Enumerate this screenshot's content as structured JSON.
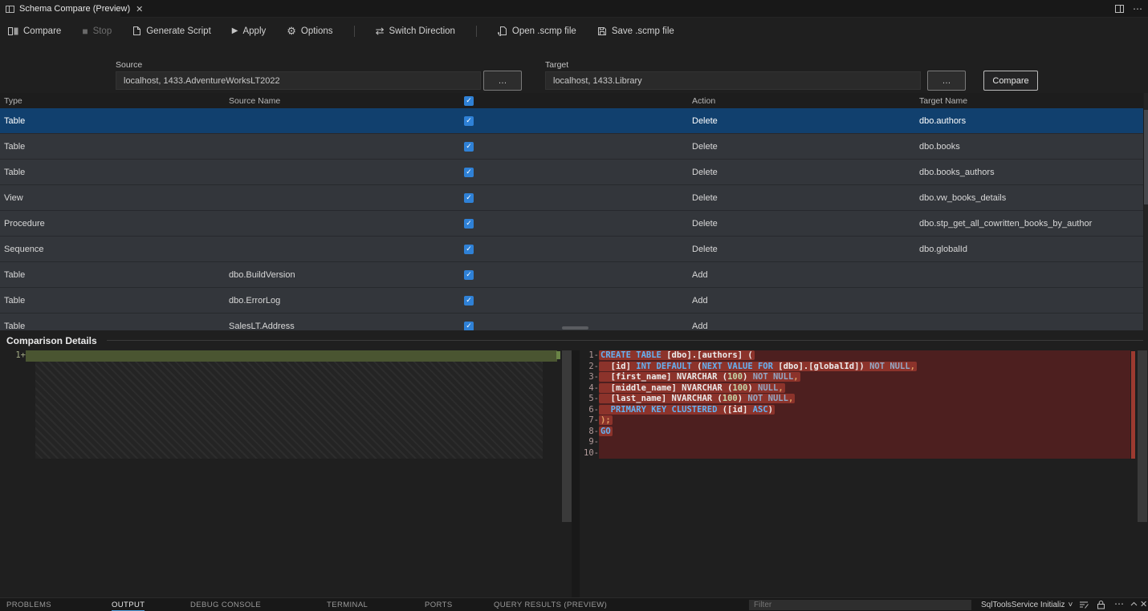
{
  "icons": {
    "check": "✓",
    "close": "✕",
    "more": "⋯",
    "chevron_down": "˅",
    "gear": "⚙",
    "swap": "⇄",
    "play": "▶",
    "stop": "■"
  },
  "tab_bar": {
    "title": "Schema Compare (Preview)"
  },
  "toolbar": {
    "items": [
      {
        "label": "Compare"
      },
      {
        "label": "Stop",
        "disabled": true
      },
      {
        "label": "Generate Script"
      },
      {
        "label": "Apply"
      },
      {
        "label": "Options"
      },
      {
        "label": "Switch Direction"
      },
      {
        "label": "Open .scmp file"
      },
      {
        "label": "Save .scmp file"
      }
    ]
  },
  "connection": {
    "source": {
      "label": "Source",
      "value": "localhost, 1433.AdventureWorksLT2022"
    },
    "target": {
      "label": "Target",
      "value": "localhost, 1433.Library"
    },
    "browse_label": "…",
    "compare_label": "Compare"
  },
  "grid": {
    "columns": [
      "Type",
      "Source Name",
      "Action",
      "Target Name"
    ],
    "rows": [
      {
        "type": "Table",
        "source": "",
        "checked": true,
        "action": "Delete",
        "target": "dbo.authors",
        "selected": true
      },
      {
        "type": "Table",
        "source": "",
        "checked": true,
        "action": "Delete",
        "target": "dbo.books"
      },
      {
        "type": "Table",
        "source": "",
        "checked": true,
        "action": "Delete",
        "target": "dbo.books_authors"
      },
      {
        "type": "View",
        "source": "",
        "checked": true,
        "action": "Delete",
        "target": "dbo.vw_books_details"
      },
      {
        "type": "Procedure",
        "source": "",
        "checked": true,
        "action": "Delete",
        "target": "dbo.stp_get_all_cowritten_books_by_author"
      },
      {
        "type": "Sequence",
        "source": "",
        "checked": true,
        "action": "Delete",
        "target": "dbo.globalId"
      },
      {
        "type": "Table",
        "source": "dbo.BuildVersion",
        "checked": true,
        "action": "Add",
        "target": ""
      },
      {
        "type": "Table",
        "source": "dbo.ErrorLog",
        "checked": true,
        "action": "Add",
        "target": ""
      },
      {
        "type": "Table",
        "source": "SalesLT.Address",
        "checked": true,
        "action": "Add",
        "target": ""
      }
    ]
  },
  "comparison": {
    "title": "Comparison Details",
    "left": {
      "lines": [
        {
          "num": "1",
          "sign": "+",
          "tokens": []
        }
      ]
    },
    "right": {
      "lines": [
        {
          "num": "1",
          "sign": "-",
          "tokens": [
            [
              "kw",
              "CREATE TABLE "
            ],
            [
              "id",
              "[dbo].[authors] ("
            ]
          ]
        },
        {
          "num": "2",
          "sign": "-",
          "tokens": [
            [
              "id",
              "  [id] "
            ],
            [
              "kw",
              "INT DEFAULT "
            ],
            [
              "id",
              "("
            ],
            [
              "kw",
              "NEXT VALUE FOR "
            ],
            [
              "id",
              "[dbo].[globalId]) "
            ],
            [
              "dim",
              "NOT NULL"
            ],
            [
              "punct",
              ","
            ]
          ]
        },
        {
          "num": "3",
          "sign": "-",
          "tokens": [
            [
              "id",
              "  [first_name] "
            ],
            [
              "type",
              "NVARCHAR "
            ],
            [
              "id",
              "("
            ],
            [
              "num",
              "100"
            ],
            [
              "id",
              ") "
            ],
            [
              "dim",
              "NOT NULL"
            ],
            [
              "punct",
              ","
            ]
          ]
        },
        {
          "num": "4",
          "sign": "-",
          "tokens": [
            [
              "id",
              "  [middle_name] "
            ],
            [
              "type",
              "NVARCHAR "
            ],
            [
              "id",
              "("
            ],
            [
              "num",
              "100"
            ],
            [
              "id",
              ") "
            ],
            [
              "dim",
              "NULL"
            ],
            [
              "punct",
              ","
            ]
          ]
        },
        {
          "num": "5",
          "sign": "-",
          "tokens": [
            [
              "id",
              "  [last_name] "
            ],
            [
              "type",
              "NVARCHAR "
            ],
            [
              "id",
              "("
            ],
            [
              "num",
              "100"
            ],
            [
              "id",
              ") "
            ],
            [
              "dim",
              "NOT NULL"
            ],
            [
              "punct",
              ","
            ]
          ]
        },
        {
          "num": "6",
          "sign": "-",
          "tokens": [
            [
              "kw",
              "  PRIMARY KEY CLUSTERED "
            ],
            [
              "id",
              "([id] "
            ],
            [
              "kw",
              "ASC"
            ],
            [
              "id",
              ")"
            ]
          ]
        },
        {
          "num": "7",
          "sign": "-",
          "tokens": [
            [
              "punct",
              ");"
            ]
          ]
        },
        {
          "num": "8",
          "sign": "-",
          "tokens": [
            [
              "kw",
              "GO"
            ]
          ]
        },
        {
          "num": "9",
          "sign": "-",
          "tokens": []
        },
        {
          "num": "10",
          "sign": "-",
          "tokens": []
        }
      ]
    }
  },
  "bottom": {
    "tabs": [
      "PROBLEMS",
      "OUTPUT",
      "DEBUG CONSOLE",
      "TERMINAL",
      "PORTS",
      "QUERY RESULTS (PREVIEW)"
    ],
    "active_tab": "OUTPUT",
    "filter_placeholder": "Filter",
    "channel": "SqlToolsService Initializ"
  }
}
